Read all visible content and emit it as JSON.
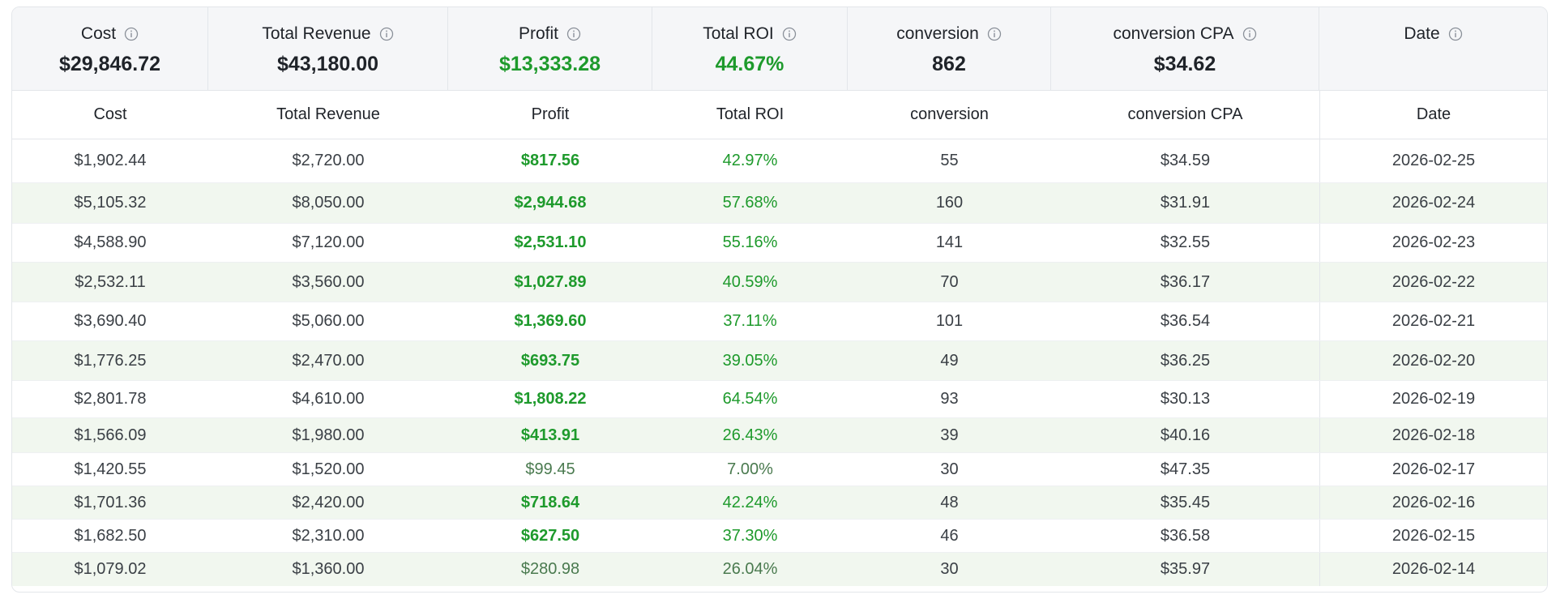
{
  "summary": [
    {
      "label": "Cost",
      "value": "$29,846.72",
      "tone": "default",
      "icon": "info-icon"
    },
    {
      "label": "Total Revenue",
      "value": "$43,180.00",
      "tone": "default",
      "icon": "info-icon"
    },
    {
      "label": "Profit",
      "value": "$13,333.28",
      "tone": "green",
      "icon": "info-icon"
    },
    {
      "label": "Total ROI",
      "value": "44.67%",
      "tone": "green",
      "icon": "info-icon"
    },
    {
      "label": "conversion",
      "value": "862",
      "tone": "default",
      "icon": "info-icon"
    },
    {
      "label": "conversion CPA",
      "value": "$34.62",
      "tone": "default",
      "icon": "info-icon"
    },
    {
      "label": "Date",
      "value": "",
      "tone": "default",
      "icon": "info-icon"
    }
  ],
  "columns": [
    "Cost",
    "Total Revenue",
    "Profit",
    "Total ROI",
    "conversion",
    "conversion CPA",
    "Date"
  ],
  "rows": [
    {
      "cost": "$1,902.44",
      "revenue": "$2,720.00",
      "profit": "$817.56",
      "roi": "42.97%",
      "conversion": "55",
      "cpa": "$34.59",
      "date": "2026-02-25"
    },
    {
      "cost": "$5,105.32",
      "revenue": "$8,050.00",
      "profit": "$2,944.68",
      "roi": "57.68%",
      "conversion": "160",
      "cpa": "$31.91",
      "date": "2026-02-24"
    },
    {
      "cost": "$4,588.90",
      "revenue": "$7,120.00",
      "profit": "$2,531.10",
      "roi": "55.16%",
      "conversion": "141",
      "cpa": "$32.55",
      "date": "2026-02-23"
    },
    {
      "cost": "$2,532.11",
      "revenue": "$3,560.00",
      "profit": "$1,027.89",
      "roi": "40.59%",
      "conversion": "70",
      "cpa": "$36.17",
      "date": "2026-02-22"
    },
    {
      "cost": "$3,690.40",
      "revenue": "$5,060.00",
      "profit": "$1,369.60",
      "roi": "37.11%",
      "conversion": "101",
      "cpa": "$36.54",
      "date": "2026-02-21"
    },
    {
      "cost": "$1,776.25",
      "revenue": "$2,470.00",
      "profit": "$693.75",
      "roi": "39.05%",
      "conversion": "49",
      "cpa": "$36.25",
      "date": "2026-02-20"
    },
    {
      "cost": "$2,801.78",
      "revenue": "$4,610.00",
      "profit": "$1,808.22",
      "roi": "64.54%",
      "conversion": "93",
      "cpa": "$30.13",
      "date": "2026-02-19"
    },
    {
      "cost": "$1,566.09",
      "revenue": "$1,980.00",
      "profit": "$413.91",
      "roi": "26.43%",
      "conversion": "39",
      "cpa": "$40.16",
      "date": "2026-02-18"
    },
    {
      "cost": "$1,420.55",
      "revenue": "$1,520.00",
      "profit": "$99.45",
      "roi": "7.00%",
      "conversion": "30",
      "cpa": "$47.35",
      "date": "2026-02-17"
    },
    {
      "cost": "$1,701.36",
      "revenue": "$2,420.00",
      "profit": "$718.64",
      "roi": "42.24%",
      "conversion": "48",
      "cpa": "$35.45",
      "date": "2026-02-16"
    },
    {
      "cost": "$1,682.50",
      "revenue": "$2,310.00",
      "profit": "$627.50",
      "roi": "37.30%",
      "conversion": "46",
      "cpa": "$36.58",
      "date": "2026-02-15"
    },
    {
      "cost": "$1,079.02",
      "revenue": "$1,360.00",
      "profit": "$280.98",
      "roi": "26.04%",
      "conversion": "30",
      "cpa": "$35.97",
      "date": "2026-02-14"
    }
  ],
  "colors": {
    "green": "#1e9a2c",
    "muted_green": "#4a7a4f",
    "row_alt": "#f1f7ef",
    "summary_bg": "#f5f6f8"
  }
}
